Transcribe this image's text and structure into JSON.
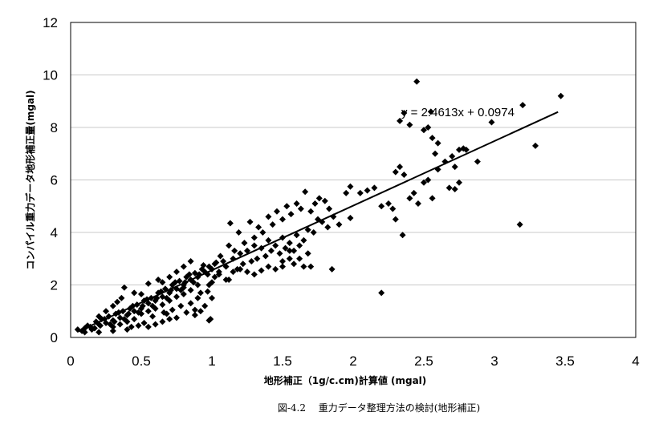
{
  "chart_data": {
    "type": "scatter",
    "title": "",
    "xlabel": "地形補正（1g/c.cm)計算値 (mgal)",
    "ylabel": "コンパイル重力データ地形補正量(mgal)",
    "xlim": [
      0,
      4
    ],
    "ylim": [
      0,
      12
    ],
    "x_ticks": [
      "0",
      "0.5",
      "1",
      "1.5",
      "2",
      "2.5",
      "3",
      "3.5",
      "4"
    ],
    "y_ticks": [
      "0",
      "2",
      "4",
      "6",
      "8",
      "10",
      "12"
    ],
    "grid": "horizontal",
    "legend": "none",
    "marker": "diamond",
    "marker_color": "#000000",
    "trendline": {
      "slope": 2.4613,
      "intercept": 0.0974,
      "x_range": [
        0.05,
        3.45
      ],
      "equation": "y = 2.4613x + 0.0974"
    },
    "series": [
      {
        "points": [
          [
            0.05,
            0.3
          ],
          [
            0.08,
            0.25
          ],
          [
            0.1,
            0.35
          ],
          [
            0.12,
            0.45
          ],
          [
            0.15,
            0.3
          ],
          [
            0.18,
            0.6
          ],
          [
            0.2,
            0.5
          ],
          [
            0.22,
            0.7
          ],
          [
            0.25,
            0.55
          ],
          [
            0.27,
            0.8
          ],
          [
            0.3,
            0.65
          ],
          [
            0.32,
            0.9
          ],
          [
            0.35,
            0.75
          ],
          [
            0.37,
            1.0
          ],
          [
            0.4,
            0.85
          ],
          [
            0.42,
            1.1
          ],
          [
            0.45,
            1.0
          ],
          [
            0.47,
            1.25
          ],
          [
            0.5,
            1.1
          ],
          [
            0.52,
            1.4
          ],
          [
            0.55,
            1.3
          ],
          [
            0.57,
            1.5
          ],
          [
            0.6,
            1.4
          ],
          [
            0.62,
            1.7
          ],
          [
            0.65,
            1.55
          ],
          [
            0.67,
            1.85
          ],
          [
            0.7,
            1.7
          ],
          [
            0.72,
            2.0
          ],
          [
            0.75,
            1.85
          ],
          [
            0.77,
            2.15
          ],
          [
            0.8,
            2.0
          ],
          [
            0.82,
            2.3
          ],
          [
            0.85,
            2.2
          ],
          [
            0.88,
            2.45
          ],
          [
            0.9,
            2.3
          ],
          [
            0.93,
            2.6
          ],
          [
            0.95,
            2.5
          ],
          [
            0.98,
            2.7
          ],
          [
            1.0,
            2.6
          ],
          [
            1.03,
            2.85
          ],
          [
            0.1,
            0.2
          ],
          [
            0.14,
            0.4
          ],
          [
            0.17,
            0.35
          ],
          [
            0.21,
            0.45
          ],
          [
            0.24,
            0.7
          ],
          [
            0.28,
            0.5
          ],
          [
            0.31,
            0.6
          ],
          [
            0.34,
            0.95
          ],
          [
            0.38,
            0.7
          ],
          [
            0.41,
            0.9
          ],
          [
            0.44,
            1.2
          ],
          [
            0.48,
            0.95
          ],
          [
            0.51,
            1.2
          ],
          [
            0.54,
            1.45
          ],
          [
            0.58,
            1.2
          ],
          [
            0.61,
            1.5
          ],
          [
            0.64,
            1.75
          ],
          [
            0.68,
            1.5
          ],
          [
            0.71,
            1.8
          ],
          [
            0.74,
            2.1
          ],
          [
            0.78,
            1.8
          ],
          [
            0.81,
            2.1
          ],
          [
            0.84,
            2.4
          ],
          [
            0.87,
            2.1
          ],
          [
            0.91,
            2.4
          ],
          [
            0.94,
            2.75
          ],
          [
            0.97,
            2.4
          ],
          [
            0.3,
            0.4
          ],
          [
            0.35,
            0.5
          ],
          [
            0.4,
            0.6
          ],
          [
            0.45,
            0.7
          ],
          [
            0.5,
            0.9
          ],
          [
            0.55,
            1.0
          ],
          [
            0.6,
            1.1
          ],
          [
            0.65,
            1.25
          ],
          [
            0.7,
            1.4
          ],
          [
            0.75,
            1.55
          ],
          [
            0.8,
            1.65
          ],
          [
            0.85,
            1.8
          ],
          [
            0.9,
            2.0
          ],
          [
            0.38,
            1.9
          ],
          [
            0.5,
            1.65
          ],
          [
            0.55,
            2.05
          ],
          [
            0.45,
            1.7
          ],
          [
            0.65,
            2.1
          ],
          [
            0.7,
            2.3
          ],
          [
            0.75,
            2.5
          ],
          [
            0.8,
            2.7
          ],
          [
            0.85,
            2.9
          ],
          [
            0.62,
            2.2
          ],
          [
            0.2,
            0.8
          ],
          [
            0.25,
            1.0
          ],
          [
            0.3,
            1.2
          ],
          [
            0.33,
            1.35
          ],
          [
            0.36,
            1.5
          ],
          [
            0.43,
            0.4
          ],
          [
            0.48,
            0.45
          ],
          [
            0.52,
            0.55
          ],
          [
            0.58,
            0.8
          ],
          [
            0.68,
            0.9
          ],
          [
            0.98,
            0.65
          ],
          [
            0.95,
            1.2
          ],
          [
            1.0,
            1.5
          ],
          [
            0.9,
            1.5
          ],
          [
            0.85,
            1.3
          ],
          [
            0.78,
            1.2
          ],
          [
            0.72,
            1.05
          ],
          [
            0.66,
            0.95
          ],
          [
            0.82,
            0.95
          ],
          [
            0.88,
            1.05
          ],
          [
            0.97,
            1.75
          ],
          [
            0.92,
            1.7
          ],
          [
            0.98,
            2.0
          ],
          [
            1.0,
            2.1
          ],
          [
            1.05,
            2.5
          ],
          [
            1.1,
            2.7
          ],
          [
            1.12,
            2.2
          ],
          [
            1.08,
            2.9
          ],
          [
            1.15,
            3.0
          ],
          [
            1.18,
            2.6
          ],
          [
            1.2,
            3.2
          ],
          [
            1.22,
            2.8
          ],
          [
            1.25,
            3.3
          ],
          [
            1.28,
            2.9
          ],
          [
            1.3,
            3.5
          ],
          [
            1.32,
            3.0
          ],
          [
            1.35,
            3.4
          ],
          [
            1.38,
            3.1
          ],
          [
            1.4,
            3.7
          ],
          [
            1.42,
            3.3
          ],
          [
            1.45,
            3.5
          ],
          [
            1.48,
            3.2
          ],
          [
            1.5,
            3.8
          ],
          [
            1.52,
            3.4
          ],
          [
            1.55,
            3.6
          ],
          [
            1.58,
            3.3
          ],
          [
            1.6,
            3.9
          ],
          [
            1.62,
            3.5
          ],
          [
            1.65,
            3.7
          ],
          [
            1.68,
            4.1
          ],
          [
            1.1,
            2.2
          ],
          [
            1.15,
            2.5
          ],
          [
            1.2,
            2.6
          ],
          [
            1.25,
            2.5
          ],
          [
            1.3,
            2.4
          ],
          [
            1.35,
            2.55
          ],
          [
            1.4,
            2.7
          ],
          [
            1.45,
            2.6
          ],
          [
            1.5,
            2.9
          ],
          [
            1.55,
            3.0
          ],
          [
            1.02,
            2.8
          ],
          [
            1.06,
            3.1
          ],
          [
            1.12,
            3.5
          ],
          [
            1.16,
            3.3
          ],
          [
            1.19,
            4.0
          ],
          [
            1.23,
            3.6
          ],
          [
            1.27,
            4.4
          ],
          [
            1.3,
            3.8
          ],
          [
            1.33,
            4.2
          ],
          [
            1.36,
            4.0
          ],
          [
            1.4,
            4.6
          ],
          [
            1.43,
            4.3
          ],
          [
            1.46,
            4.8
          ],
          [
            1.5,
            4.5
          ],
          [
            1.53,
            5.0
          ],
          [
            1.56,
            4.7
          ],
          [
            1.6,
            5.1
          ],
          [
            1.63,
            4.9
          ],
          [
            1.66,
            5.55
          ],
          [
            1.7,
            4.8
          ],
          [
            1.73,
            5.1
          ],
          [
            1.76,
            5.3
          ],
          [
            1.8,
            5.2
          ],
          [
            1.83,
            4.9
          ],
          [
            1.86,
            4.6
          ],
          [
            1.9,
            4.3
          ],
          [
            1.75,
            4.5
          ],
          [
            1.72,
            4.0
          ],
          [
            1.78,
            4.4
          ],
          [
            1.82,
            4.2
          ],
          [
            1.13,
            4.35
          ],
          [
            1.02,
            2.3
          ],
          [
            1.05,
            2.4
          ],
          [
            0.8,
            1.9
          ],
          [
            0.99,
            0.7
          ],
          [
            1.65,
            2.7
          ],
          [
            1.7,
            2.7
          ],
          [
            1.85,
            2.6
          ],
          [
            2.2,
            1.7
          ],
          [
            1.98,
            4.55
          ],
          [
            1.95,
            5.5
          ],
          [
            1.98,
            5.75
          ],
          [
            2.05,
            5.5
          ],
          [
            2.1,
            5.6
          ],
          [
            2.15,
            5.7
          ],
          [
            2.2,
            5.0
          ],
          [
            2.25,
            5.1
          ],
          [
            2.28,
            4.9
          ],
          [
            2.3,
            4.5
          ],
          [
            2.35,
            3.9
          ],
          [
            2.3,
            6.3
          ],
          [
            2.33,
            6.5
          ],
          [
            2.36,
            6.2
          ],
          [
            2.4,
            5.3
          ],
          [
            2.43,
            5.5
          ],
          [
            2.46,
            5.1
          ],
          [
            2.5,
            5.9
          ],
          [
            2.53,
            6.0
          ],
          [
            2.56,
            5.3
          ],
          [
            2.6,
            6.4
          ],
          [
            2.33,
            8.25
          ],
          [
            2.36,
            8.55
          ],
          [
            2.4,
            8.1
          ],
          [
            2.45,
            9.75
          ],
          [
            2.5,
            7.9
          ],
          [
            2.53,
            8.0
          ],
          [
            2.56,
            7.6
          ],
          [
            2.6,
            7.4
          ],
          [
            2.58,
            7.0
          ],
          [
            2.65,
            6.7
          ],
          [
            2.68,
            5.7
          ],
          [
            2.72,
            5.65
          ],
          [
            2.75,
            5.9
          ],
          [
            2.72,
            6.5
          ],
          [
            2.75,
            7.15
          ],
          [
            2.78,
            7.2
          ],
          [
            2.8,
            7.15
          ],
          [
            2.88,
            6.7
          ],
          [
            2.98,
            8.2
          ],
          [
            3.18,
            4.3
          ],
          [
            3.2,
            8.85
          ],
          [
            3.29,
            7.3
          ],
          [
            3.47,
            9.2
          ],
          [
            2.55,
            8.6
          ],
          [
            2.7,
            6.9
          ],
          [
            1.5,
            2.7
          ],
          [
            1.58,
            2.8
          ],
          [
            1.62,
            3.0
          ],
          [
            1.68,
            3.2
          ],
          [
            1.55,
            3.3
          ],
          [
            0.55,
            0.4
          ],
          [
            0.6,
            0.5
          ],
          [
            0.65,
            0.6
          ],
          [
            0.7,
            0.7
          ],
          [
            0.75,
            0.75
          ],
          [
            0.88,
            0.85
          ],
          [
            0.92,
            1.0
          ],
          [
            0.4,
            0.3
          ],
          [
            0.3,
            0.25
          ],
          [
            0.2,
            0.2
          ]
        ]
      }
    ]
  },
  "caption": "図-4.2　 重力データ整理方法の検討(地形補正)"
}
